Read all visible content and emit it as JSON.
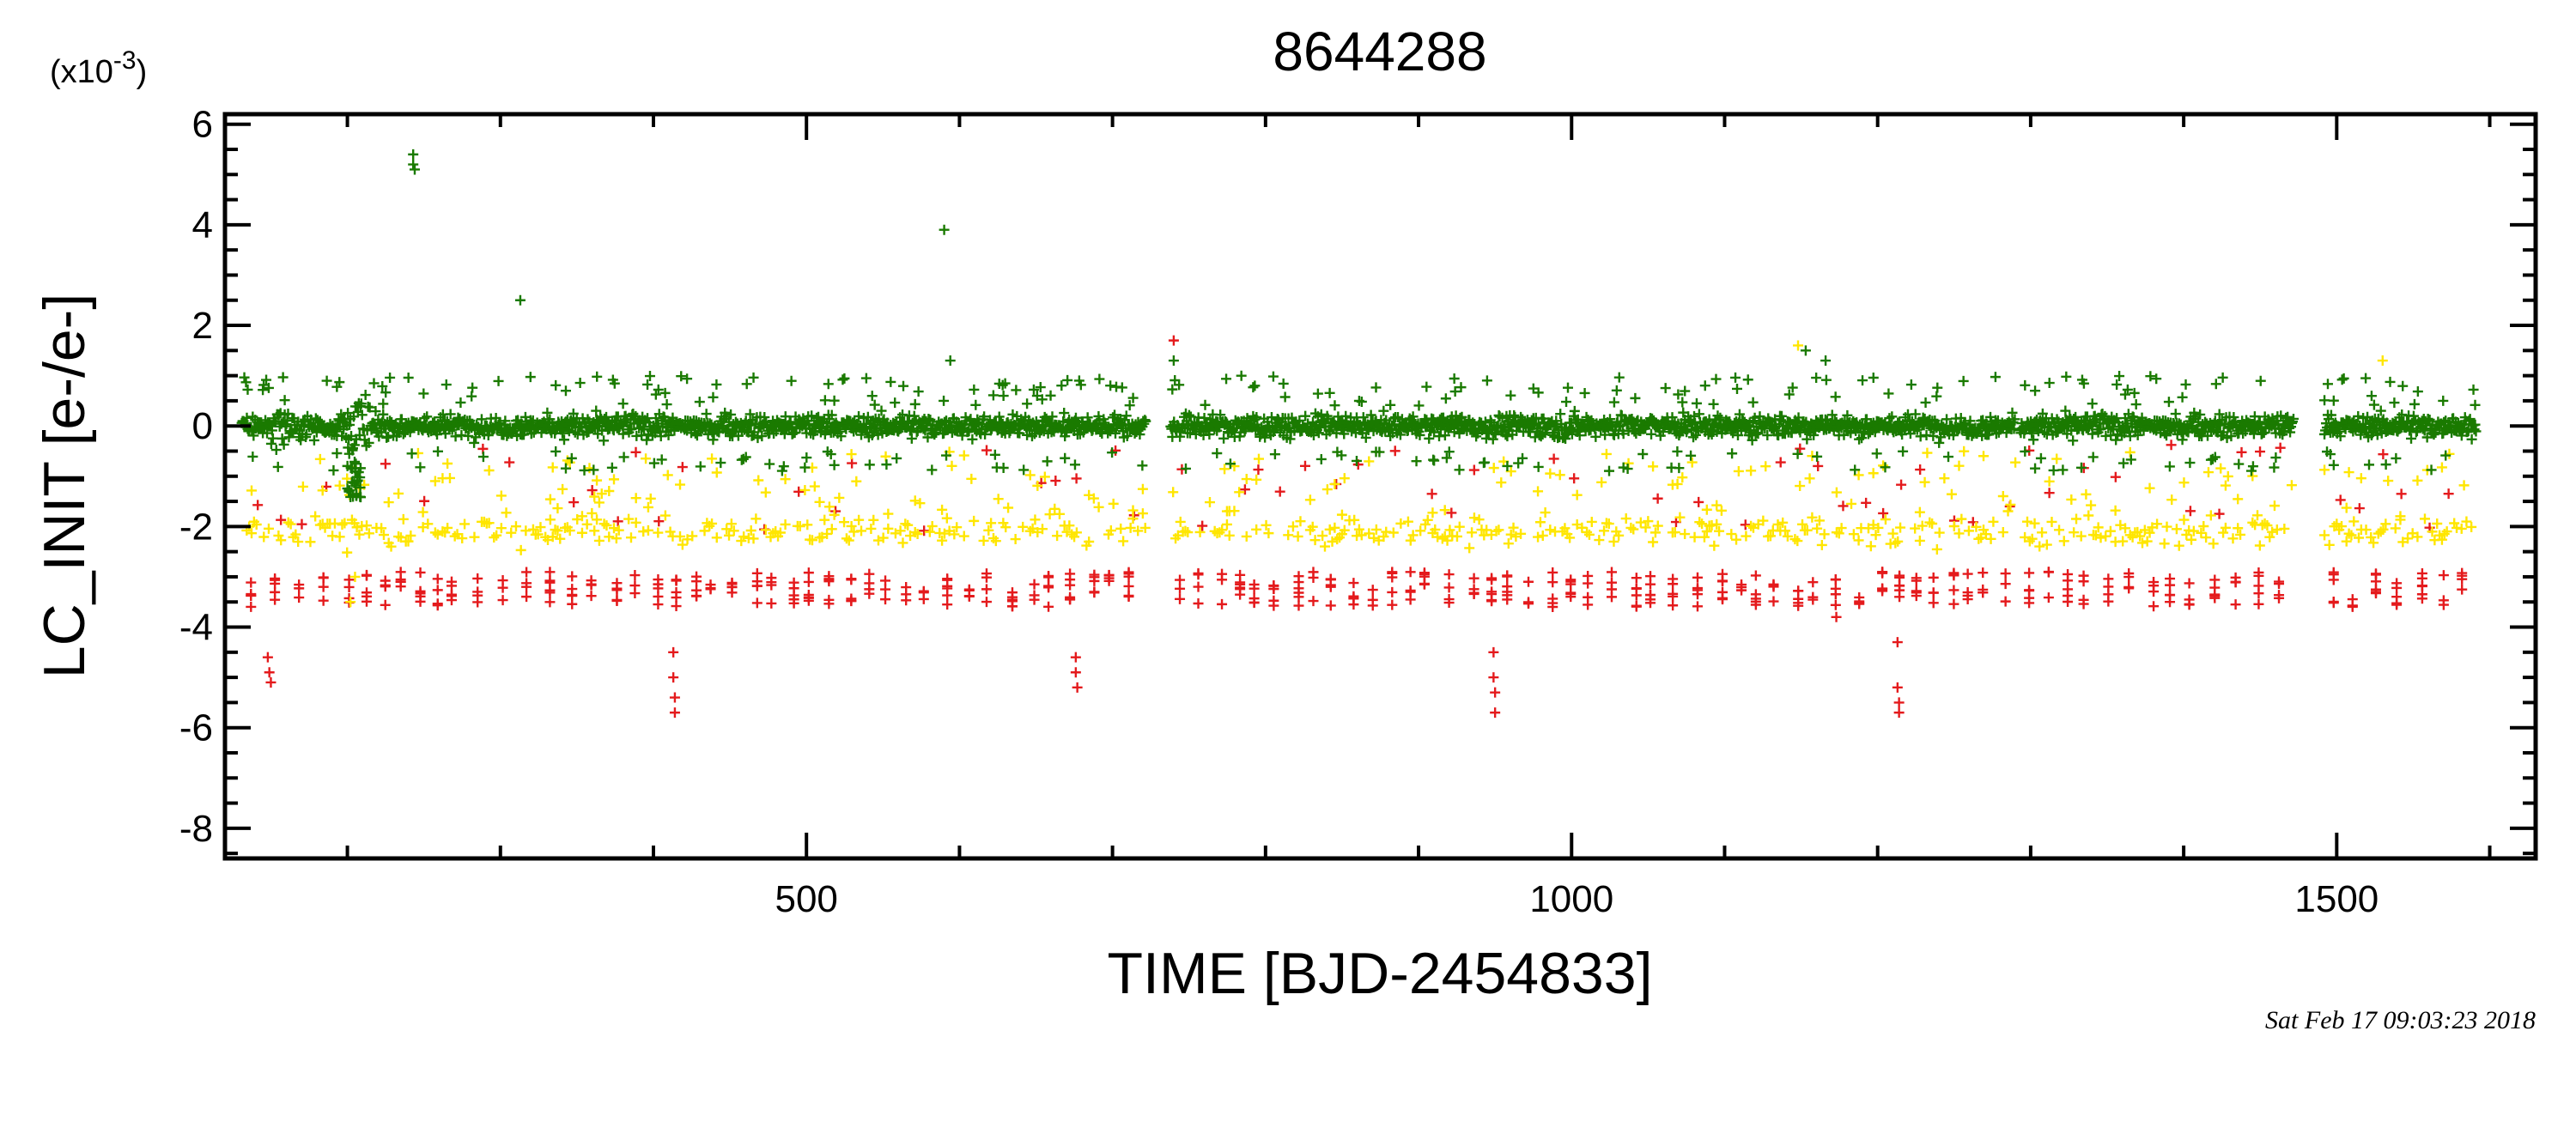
{
  "chart_data": {
    "type": "scatter",
    "title": "8644288",
    "xlabel": "TIME [BJD-2454833]",
    "ylabel": "LC_INIT [e-/e-]",
    "y_scale_label_base": "(x10",
    "y_scale_label_exp": "-3",
    "y_scale_label_close": ")",
    "y_scale_factor": 0.001,
    "xlim": [
      120,
      1630
    ],
    "ylim": [
      -8.6,
      6.2
    ],
    "x_ticks": [
      500,
      1000,
      1500
    ],
    "x_tick_labels": [
      "500",
      "1000",
      "1500"
    ],
    "y_ticks": [
      6,
      4,
      2,
      0,
      -2,
      -4,
      -6,
      -8
    ],
    "y_tick_labels": [
      "6",
      "4",
      "2",
      "0",
      "-2",
      "-4",
      "-6",
      "-8"
    ],
    "marker": "plus",
    "grid": false,
    "data_segments": [
      [
        131,
        722
      ],
      [
        738,
        1290
      ],
      [
        1293,
        1472
      ],
      [
        1492,
        1591
      ]
    ],
    "series": [
      {
        "color": "#e41a1c",
        "description_hint": "red points",
        "outliers": [
          {
            "x": 148,
            "y": -4.6
          },
          {
            "x": 149,
            "y": -4.9
          },
          {
            "x": 150,
            "y": -5.1
          },
          {
            "x": 413,
            "y": -4.5
          },
          {
            "x": 413,
            "y": -5.0
          },
          {
            "x": 414,
            "y": -5.4
          },
          {
            "x": 414,
            "y": -5.7
          },
          {
            "x": 676,
            "y": -4.6
          },
          {
            "x": 676,
            "y": -4.9
          },
          {
            "x": 677,
            "y": -5.2
          },
          {
            "x": 949,
            "y": -4.5
          },
          {
            "x": 949,
            "y": -5.0
          },
          {
            "x": 950,
            "y": -5.3
          },
          {
            "x": 950,
            "y": -5.7
          },
          {
            "x": 1213,
            "y": -4.3
          },
          {
            "x": 1213,
            "y": -5.2
          },
          {
            "x": 1214,
            "y": -5.5
          },
          {
            "x": 1214,
            "y": -5.7
          },
          {
            "x": 740,
            "y": 1.7
          },
          {
            "x": 1173,
            "y": -3.8
          }
        ]
      },
      {
        "color": "#ffe600",
        "description_hint": "yellow points",
        "outliers": [
          {
            "x": 1148,
            "y": 1.6
          },
          {
            "x": 1530,
            "y": 1.3
          },
          {
            "x": 202,
            "y": -3.5
          },
          {
            "x": 205,
            "y": -3.0
          }
        ]
      },
      {
        "color": "#1a7a00",
        "description_hint": "green points",
        "outliers": [
          {
            "x": 243,
            "y": 5.4
          },
          {
            "x": 243,
            "y": 5.2
          },
          {
            "x": 244,
            "y": 5.1
          },
          {
            "x": 590,
            "y": 3.9
          },
          {
            "x": 313,
            "y": 2.5
          },
          {
            "x": 594,
            "y": 1.3
          },
          {
            "x": 740,
            "y": 1.3
          },
          {
            "x": 1153,
            "y": 1.5
          },
          {
            "x": 1166,
            "y": 1.3
          }
        ]
      }
    ]
  },
  "footer": {
    "timestamp": "Sat Feb 17 09:03:23 2018"
  }
}
